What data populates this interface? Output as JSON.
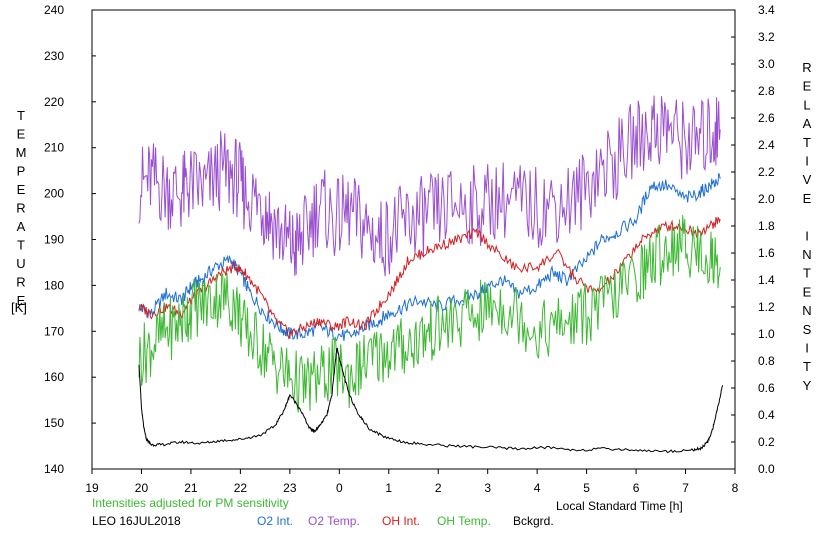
{
  "chart_data": {
    "type": "line",
    "left_axis": {
      "label": "TEMPERATURE",
      "unit": "[K]",
      "ylim": [
        140,
        240
      ],
      "ticks": [
        "140",
        "150",
        "160",
        "170",
        "180",
        "190",
        "200",
        "210",
        "220",
        "230",
        "240"
      ]
    },
    "right_axis": {
      "label": "RELATIVE INTENSITY",
      "ylim": [
        0.0,
        3.4
      ],
      "ticks": [
        "0.0",
        "0.2",
        "0.4",
        "0.6",
        "0.8",
        "1.0",
        "1.2",
        "1.4",
        "1.6",
        "1.8",
        "2.0",
        "2.2",
        "2.4",
        "2.6",
        "2.8",
        "3.0",
        "3.2",
        "3.4"
      ]
    },
    "x_axis": {
      "label": "Local Standard Time [h]",
      "range_hours": [
        19,
        32
      ],
      "ticks": [
        "19",
        "20",
        "21",
        "22",
        "23",
        "0",
        "1",
        "2",
        "3",
        "4",
        "5",
        "6",
        "7",
        "8"
      ]
    },
    "note": "Intensities adjusted for PM sensitivity",
    "station": "LEO 16JUL2018",
    "grid": false,
    "series": [
      {
        "name": "O2 Int.",
        "axis": "right",
        "color": "#1e6fd6",
        "x": [
          19.95,
          20.2,
          20.5,
          20.8,
          21.0,
          21.2,
          21.5,
          21.8,
          22.0,
          22.2,
          22.5,
          22.8,
          23.0,
          23.3,
          23.6,
          23.9,
          24.2,
          24.5,
          24.8,
          25.0,
          25.3,
          25.6,
          26.0,
          26.4,
          26.8,
          27.0,
          27.3,
          27.6,
          28.0,
          28.3,
          28.6,
          29.0,
          29.3,
          29.6,
          30.0,
          30.3,
          30.6,
          31.0,
          31.3,
          31.5,
          31.7
        ],
        "y": [
          1.2,
          1.15,
          1.3,
          1.25,
          1.35,
          1.4,
          1.5,
          1.55,
          1.45,
          1.3,
          1.15,
          1.05,
          1.0,
          1.0,
          1.05,
          1.0,
          0.98,
          1.05,
          1.1,
          1.15,
          1.2,
          1.25,
          1.2,
          1.25,
          1.3,
          1.35,
          1.4,
          1.3,
          1.35,
          1.45,
          1.4,
          1.55,
          1.7,
          1.75,
          1.85,
          2.1,
          2.1,
          2.0,
          2.05,
          2.1,
          2.15
        ]
      },
      {
        "name": "O2 Temp.",
        "axis": "left",
        "color": "#9a4fd0",
        "x": [
          19.95,
          20.2,
          20.5,
          20.8,
          21.0,
          21.3,
          21.6,
          21.9,
          22.1,
          22.4,
          22.6,
          22.9,
          23.1,
          23.3,
          23.6,
          23.9,
          24.2,
          24.5,
          24.8,
          25.1,
          25.4,
          25.7,
          26.0,
          26.4,
          26.8,
          27.2,
          27.6,
          28.0,
          28.4,
          28.8,
          29.2,
          29.6,
          30.0,
          30.3,
          30.6,
          30.9,
          31.2,
          31.5,
          31.7
        ],
        "y": [
          202,
          203,
          201,
          200,
          202,
          201,
          205,
          204,
          200,
          198,
          195,
          190,
          188,
          191,
          198,
          194,
          196,
          193,
          190,
          192,
          194,
          195,
          196,
          198,
          197,
          199,
          198,
          197,
          198,
          199,
          205,
          207,
          212,
          214,
          215,
          212,
          211,
          213,
          214
        ]
      },
      {
        "name": "OH Int.",
        "axis": "right",
        "color": "#d42020",
        "x": [
          19.95,
          20.2,
          20.5,
          20.8,
          21.0,
          21.3,
          21.6,
          21.9,
          22.1,
          22.4,
          22.7,
          23.0,
          23.3,
          23.6,
          23.9,
          24.2,
          24.5,
          24.8,
          25.1,
          25.4,
          25.7,
          26.0,
          26.4,
          26.8,
          27.2,
          27.6,
          28.0,
          28.4,
          28.8,
          29.2,
          29.6,
          30.0,
          30.3,
          30.6,
          30.9,
          31.2,
          31.5,
          31.7
        ],
        "y": [
          1.2,
          1.15,
          1.2,
          1.15,
          1.25,
          1.35,
          1.45,
          1.5,
          1.45,
          1.3,
          1.1,
          1.0,
          1.05,
          1.1,
          1.05,
          1.1,
          1.05,
          1.2,
          1.35,
          1.55,
          1.6,
          1.65,
          1.7,
          1.75,
          1.6,
          1.48,
          1.5,
          1.6,
          1.4,
          1.3,
          1.45,
          1.65,
          1.75,
          1.8,
          1.8,
          1.75,
          1.8,
          1.85
        ]
      },
      {
        "name": "OH Temp.",
        "axis": "left",
        "color": "#3cb832",
        "x": [
          19.95,
          20.2,
          20.5,
          20.8,
          21.0,
          21.3,
          21.6,
          21.9,
          22.1,
          22.4,
          22.7,
          23.0,
          23.3,
          23.6,
          23.9,
          24.2,
          24.5,
          24.8,
          25.1,
          25.4,
          25.7,
          26.0,
          26.4,
          26.8,
          27.2,
          27.6,
          28.0,
          28.4,
          28.8,
          29.2,
          29.6,
          30.0,
          30.3,
          30.6,
          30.9,
          31.2,
          31.5,
          31.7
        ],
        "y": [
          164,
          167,
          170,
          172,
          175,
          176,
          178,
          176,
          170,
          167,
          163,
          160,
          158,
          160,
          162,
          160,
          163,
          165,
          166,
          167,
          169,
          171,
          172,
          174,
          176,
          174,
          170,
          171,
          173,
          175,
          178,
          182,
          185,
          188,
          189,
          188,
          186,
          184
        ]
      },
      {
        "name": "Bckgrd.",
        "axis": "right",
        "color": "#000000",
        "x": [
          19.95,
          20.0,
          20.05,
          20.1,
          20.2,
          20.4,
          20.8,
          21.2,
          21.6,
          22.0,
          22.4,
          22.7,
          22.9,
          23.0,
          23.2,
          23.4,
          23.5,
          23.6,
          23.75,
          23.85,
          23.95,
          24.05,
          24.2,
          24.4,
          24.6,
          24.9,
          25.3,
          25.8,
          26.4,
          27.0,
          27.6,
          28.2,
          28.8,
          29.4,
          30.0,
          30.6,
          31.1,
          31.3,
          31.45,
          31.55,
          31.65,
          31.75
        ],
        "y": [
          0.78,
          0.45,
          0.3,
          0.22,
          0.18,
          0.18,
          0.2,
          0.19,
          0.21,
          0.22,
          0.25,
          0.32,
          0.45,
          0.55,
          0.45,
          0.3,
          0.28,
          0.32,
          0.4,
          0.55,
          0.9,
          0.75,
          0.55,
          0.4,
          0.3,
          0.24,
          0.2,
          0.18,
          0.17,
          0.16,
          0.15,
          0.16,
          0.14,
          0.15,
          0.14,
          0.13,
          0.14,
          0.15,
          0.2,
          0.3,
          0.45,
          0.62
        ]
      }
    ]
  }
}
